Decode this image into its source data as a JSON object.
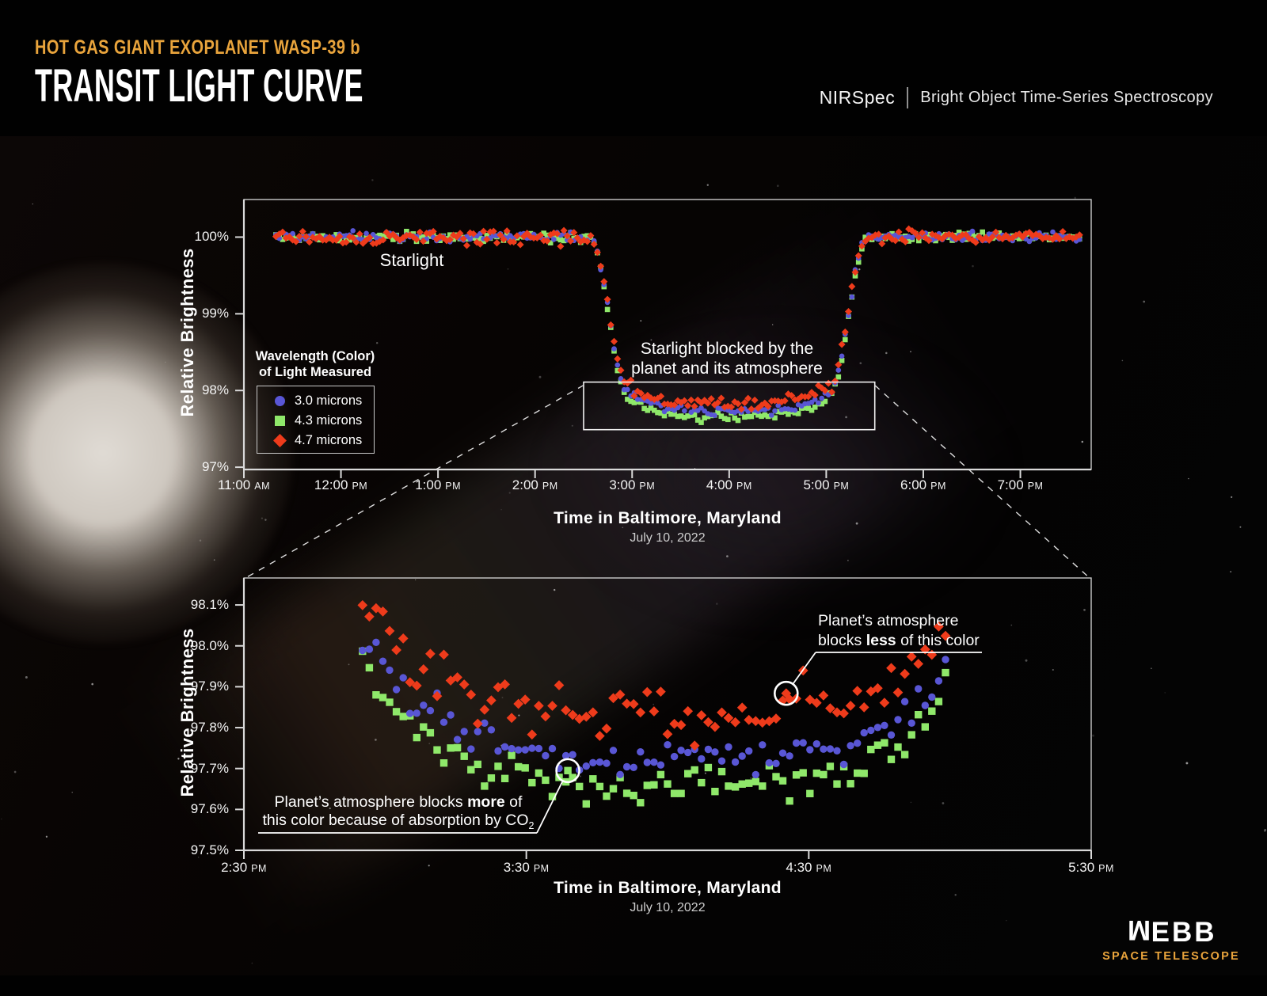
{
  "header": {
    "kicker": "HOT GAS GIANT EXOPLANET WASP-39 b",
    "title": "TRANSIT LIGHT CURVE",
    "instrument": "NIRSpec",
    "mode": "Bright Object Time-Series Spectroscopy"
  },
  "colors": {
    "accent_gold": "#e9a43c",
    "series_blue": "#5956d5",
    "series_green": "#8fe86a",
    "series_red": "#ee3b1b",
    "axis": "#d9d9d9",
    "annotation_white": "#ffffff"
  },
  "legend": {
    "title_line1": "Wavelength (Color)",
    "title_line2": "of Light Measured",
    "items": [
      {
        "label": "3.0 microns",
        "marker": "circle",
        "color_key": "series_blue"
      },
      {
        "label": "4.3 microns",
        "marker": "square",
        "color_key": "series_green"
      },
      {
        "label": "4.7 microns",
        "marker": "diamond",
        "color_key": "series_red"
      }
    ]
  },
  "logo": {
    "name": "WEBB",
    "sub": "SPACE TELESCOPE"
  },
  "chart_data": [
    {
      "id": "transit_light_curve_overview",
      "type": "scatter",
      "xlabel": "Time in Baltimore, Maryland",
      "x_sublabel": "July 10, 2022",
      "ylabel": "Relative Brightness",
      "x_range_hours": [
        11.0,
        19.73
      ],
      "y_range_percent": [
        96.97,
        100.49
      ],
      "x_ticks": [
        {
          "time": "11:00",
          "meridiem": "AM",
          "hour": 11
        },
        {
          "time": "12:00",
          "meridiem": "PM",
          "hour": 12
        },
        {
          "time": "1:00",
          "meridiem": "PM",
          "hour": 13
        },
        {
          "time": "2:00",
          "meridiem": "PM",
          "hour": 14
        },
        {
          "time": "3:00",
          "meridiem": "PM",
          "hour": 15
        },
        {
          "time": "4:00",
          "meridiem": "PM",
          "hour": 16
        },
        {
          "time": "5:00",
          "meridiem": "PM",
          "hour": 17
        },
        {
          "time": "6:00",
          "meridiem": "PM",
          "hour": 18
        },
        {
          "time": "7:00",
          "meridiem": "PM",
          "hour": 19
        }
      ],
      "y_ticks": [
        {
          "label": "100%",
          "percent": 100
        },
        {
          "label": "99%",
          "percent": 99
        },
        {
          "label": "98%",
          "percent": 98
        },
        {
          "label": "97%",
          "percent": 97
        }
      ],
      "series": [
        {
          "name": "3.0 microns",
          "marker": "circle",
          "color_key": "series_blue",
          "depth_scale": 1.0,
          "noise_percent": 0.03
        },
        {
          "name": "4.3 microns",
          "marker": "square",
          "color_key": "series_green",
          "depth_scale": 1.03,
          "noise_percent": 0.028
        },
        {
          "name": "4.7 microns",
          "marker": "diamond",
          "color_key": "series_red",
          "depth_scale": 0.955,
          "noise_percent": 0.042
        }
      ],
      "transit_model": {
        "baseline_percent": 100,
        "ingress_start_hour": 14.57,
        "ingress_end_hour": 14.95,
        "egress_start_hour": 17.04,
        "egress_end_hour": 17.42,
        "floor_min_percent": 97.73,
        "floor_center_hour": 16.0,
        "floor_curve_amplitude": 0.27,
        "floor_curve_halfwidth_hours": 1.06,
        "floor_curve_exponent": 4
      },
      "sampling": {
        "start_hour": 11.33,
        "end_hour": 19.64,
        "cadence_hours": 0.0345,
        "seed": 12345
      },
      "zoom_box": {
        "x_hours": [
          14.5,
          17.5
        ],
        "y_percent": [
          97.49,
          98.11
        ]
      },
      "annotations": {
        "starlight": "Starlight",
        "blocked_line1": "Starlight blocked by the",
        "blocked_line2": "planet and its atmosphere"
      }
    },
    {
      "id": "transit_floor_zoom",
      "type": "scatter",
      "xlabel": "Time in Baltimore, Maryland",
      "x_sublabel": "July 10, 2022",
      "ylabel": "Relative Brightness",
      "x_range_hours": [
        14.5,
        17.5
      ],
      "y_range_percent": [
        97.5,
        98.166
      ],
      "x_ticks": [
        {
          "time": "2:30",
          "meridiem": "PM",
          "hour": 14.5
        },
        {
          "time": "3:30",
          "meridiem": "PM",
          "hour": 15.5
        },
        {
          "time": "4:30",
          "meridiem": "PM",
          "hour": 16.5
        },
        {
          "time": "5:30",
          "meridiem": "PM",
          "hour": 17.5
        }
      ],
      "y_ticks": [
        {
          "label": "98.1%",
          "percent": 98.1
        },
        {
          "label": "98.0%",
          "percent": 98.0
        },
        {
          "label": "97.9%",
          "percent": 97.9
        },
        {
          "label": "97.8%",
          "percent": 97.8
        },
        {
          "label": "97.7%",
          "percent": 97.7
        },
        {
          "label": "97.6%",
          "percent": 97.6
        },
        {
          "label": "97.5%",
          "percent": 97.5
        }
      ],
      "series": [
        {
          "name": "3.0 microns",
          "marker": "circle",
          "color_key": "series_blue",
          "depth_scale": 1.0,
          "noise_percent": 0.022
        },
        {
          "name": "4.3 microns",
          "marker": "square",
          "color_key": "series_green",
          "depth_scale": 1.03,
          "noise_percent": 0.022
        },
        {
          "name": "4.7 microns",
          "marker": "diamond",
          "color_key": "series_red",
          "depth_scale": 0.955,
          "noise_percent": 0.035
        }
      ],
      "transit_model": {
        "baseline_percent": 100,
        "ingress_start_hour": 14.57,
        "ingress_end_hour": 14.95,
        "egress_start_hour": 17.04,
        "egress_end_hour": 17.42,
        "floor_min_percent": 97.73,
        "floor_center_hour": 16.0,
        "floor_curve_amplitude": 0.27,
        "floor_curve_halfwidth_hours": 1.06,
        "floor_curve_exponent": 4
      },
      "sampling": {
        "start_hour": 14.92,
        "end_hour": 17.0,
        "cadence_hours": 0.024,
        "seed": 777
      },
      "annotations": {
        "less": {
          "line1": "Planet’s atmosphere",
          "line2_pre": "blocks ",
          "line2_bold": "less",
          "line2_post": " of this color",
          "target": {
            "hour": 16.42,
            "percent": 97.884,
            "series": "4.7 microns",
            "marker": "diamond",
            "color_key": "series_red"
          }
        },
        "more": {
          "line1_pre": "Planet’s atmosphere blocks ",
          "line1_bold": "more",
          "line1_post": " of",
          "line2_text": "this color because of absorption by CO",
          "line2_sub": "2",
          "target": {
            "hour": 15.647,
            "percent": 97.695,
            "series": "4.3 microns",
            "marker": "square",
            "color_key": "series_green"
          }
        }
      }
    }
  ]
}
